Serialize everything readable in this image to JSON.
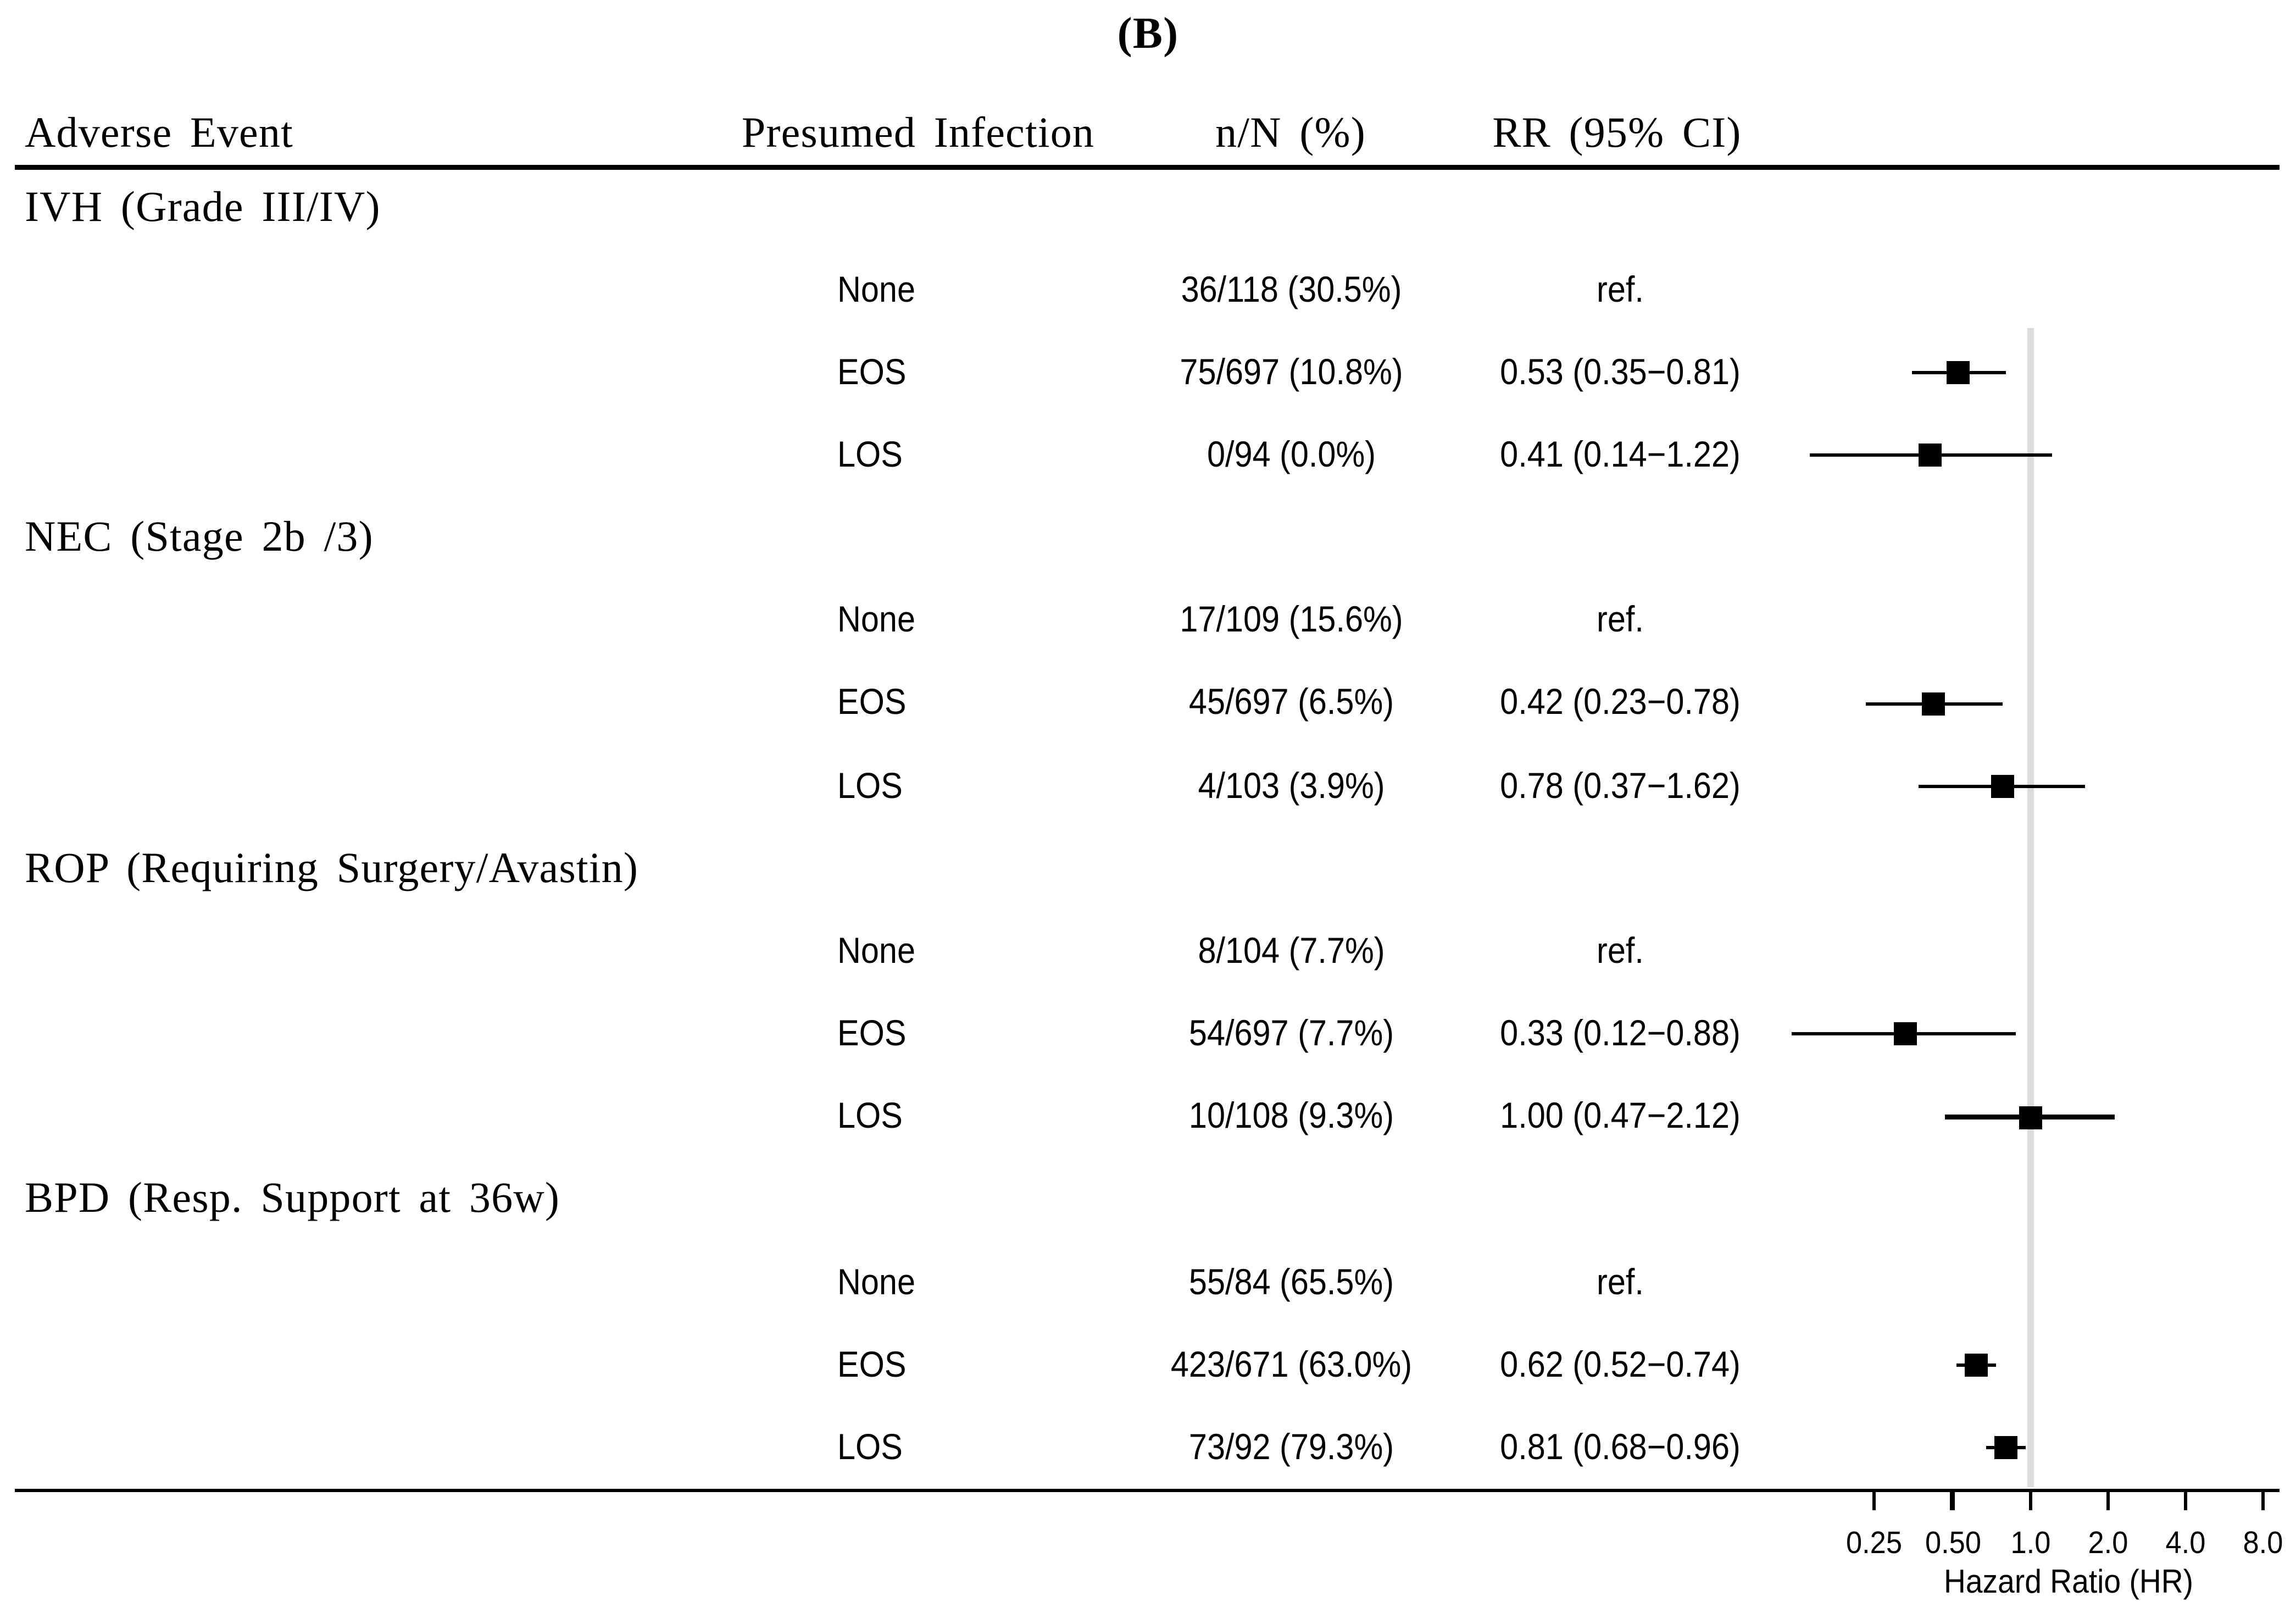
{
  "figure": {
    "title": "(B)"
  },
  "table": {
    "headers": {
      "adverse_event": "Adverse Event",
      "presumed_infection": "Presumed Infection",
      "n_N_pct": "n/N (%)",
      "rr_ci": "RR (95% CI)"
    },
    "reference_label": "ref."
  },
  "colors": {
    "text": "#000000",
    "marker": "#000000",
    "reference_line": "#dcdcdc",
    "rule": "#000000"
  },
  "chart_data": {
    "type": "scatter",
    "variant": "forest-plot",
    "x_scale": "log2",
    "xlabel": "Hazard Ratio (HR)",
    "reference_line": 1.0,
    "x_ticks": {
      "labels": [
        "0.25",
        "0.50",
        "1.0",
        "2.0",
        "4.0",
        "8.0"
      ],
      "values": [
        0.25,
        0.5,
        1.0,
        2.0,
        4.0,
        8.0
      ]
    },
    "groups": [
      {
        "label": "IVH (Grade III/IV)",
        "rows": [
          {
            "infection": "None",
            "n_N": "36/118 (30.5%)",
            "rr_label": "ref."
          },
          {
            "infection": "EOS",
            "n_N": "75/697 (10.8%)",
            "rr_label": "0.53 (0.35−0.81)",
            "rr": 0.53,
            "ci": [
              0.35,
              0.81
            ]
          },
          {
            "infection": "LOS",
            "n_N": "0/94 (0.0%)",
            "rr_label": "0.41 (0.14−1.22)",
            "rr": 0.41,
            "ci": [
              0.14,
              1.22
            ]
          }
        ]
      },
      {
        "label": "NEC (Stage 2b /3)",
        "rows": [
          {
            "infection": "None",
            "n_N": "17/109 (15.6%)",
            "rr_label": "ref."
          },
          {
            "infection": "EOS",
            "n_N": "45/697 (6.5%)",
            "rr_label": "0.42 (0.23−0.78)",
            "rr": 0.42,
            "ci": [
              0.23,
              0.78
            ]
          },
          {
            "infection": "LOS",
            "n_N": "4/103 (3.9%)",
            "rr_label": "0.78 (0.37−1.62)",
            "rr": 0.78,
            "ci": [
              0.37,
              1.62
            ]
          }
        ]
      },
      {
        "label": "ROP (Requiring Surgery/Avastin)",
        "rows": [
          {
            "infection": "None",
            "n_N": "8/104 (7.7%)",
            "rr_label": "ref."
          },
          {
            "infection": "EOS",
            "n_N": "54/697 (7.7%)",
            "rr_label": "0.33 (0.12−0.88)",
            "rr": 0.33,
            "ci": [
              0.12,
              0.88
            ]
          },
          {
            "infection": "LOS",
            "n_N": "10/108 (9.3%)",
            "rr_label": "1.00 (0.47−2.12)",
            "rr": 1.0,
            "ci": [
              0.47,
              2.12
            ]
          }
        ]
      },
      {
        "label": "BPD (Resp. Support at 36w)",
        "rows": [
          {
            "infection": "None",
            "n_N": "55/84 (65.5%)",
            "rr_label": "ref."
          },
          {
            "infection": "EOS",
            "n_N": "423/671 (63.0%)",
            "rr_label": "0.62 (0.52−0.74)",
            "rr": 0.62,
            "ci": [
              0.52,
              0.74
            ]
          },
          {
            "infection": "LOS",
            "n_N": "73/92 (79.3%)",
            "rr_label": "0.81 (0.68−0.96)",
            "rr": 0.81,
            "ci": [
              0.68,
              0.96
            ]
          }
        ]
      }
    ]
  }
}
